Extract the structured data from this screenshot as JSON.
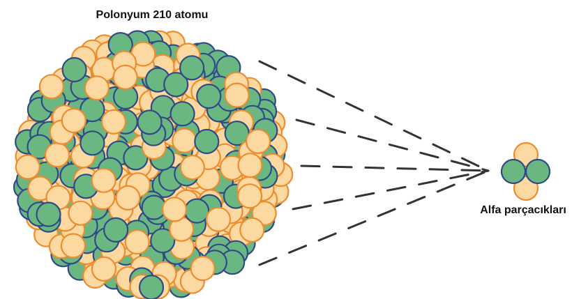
{
  "diagram": {
    "title": "Polonyum 210 atomu",
    "particle_label": "Alfa parçacıkları"
  },
  "colors": {
    "proton_fill": "#fcd9a0",
    "proton_stroke": "#ec8c2e",
    "neutron_fill": "#6bb781",
    "neutron_stroke": "#2f4a86",
    "trail": "#333333",
    "background": "#ffffff"
  }
}
